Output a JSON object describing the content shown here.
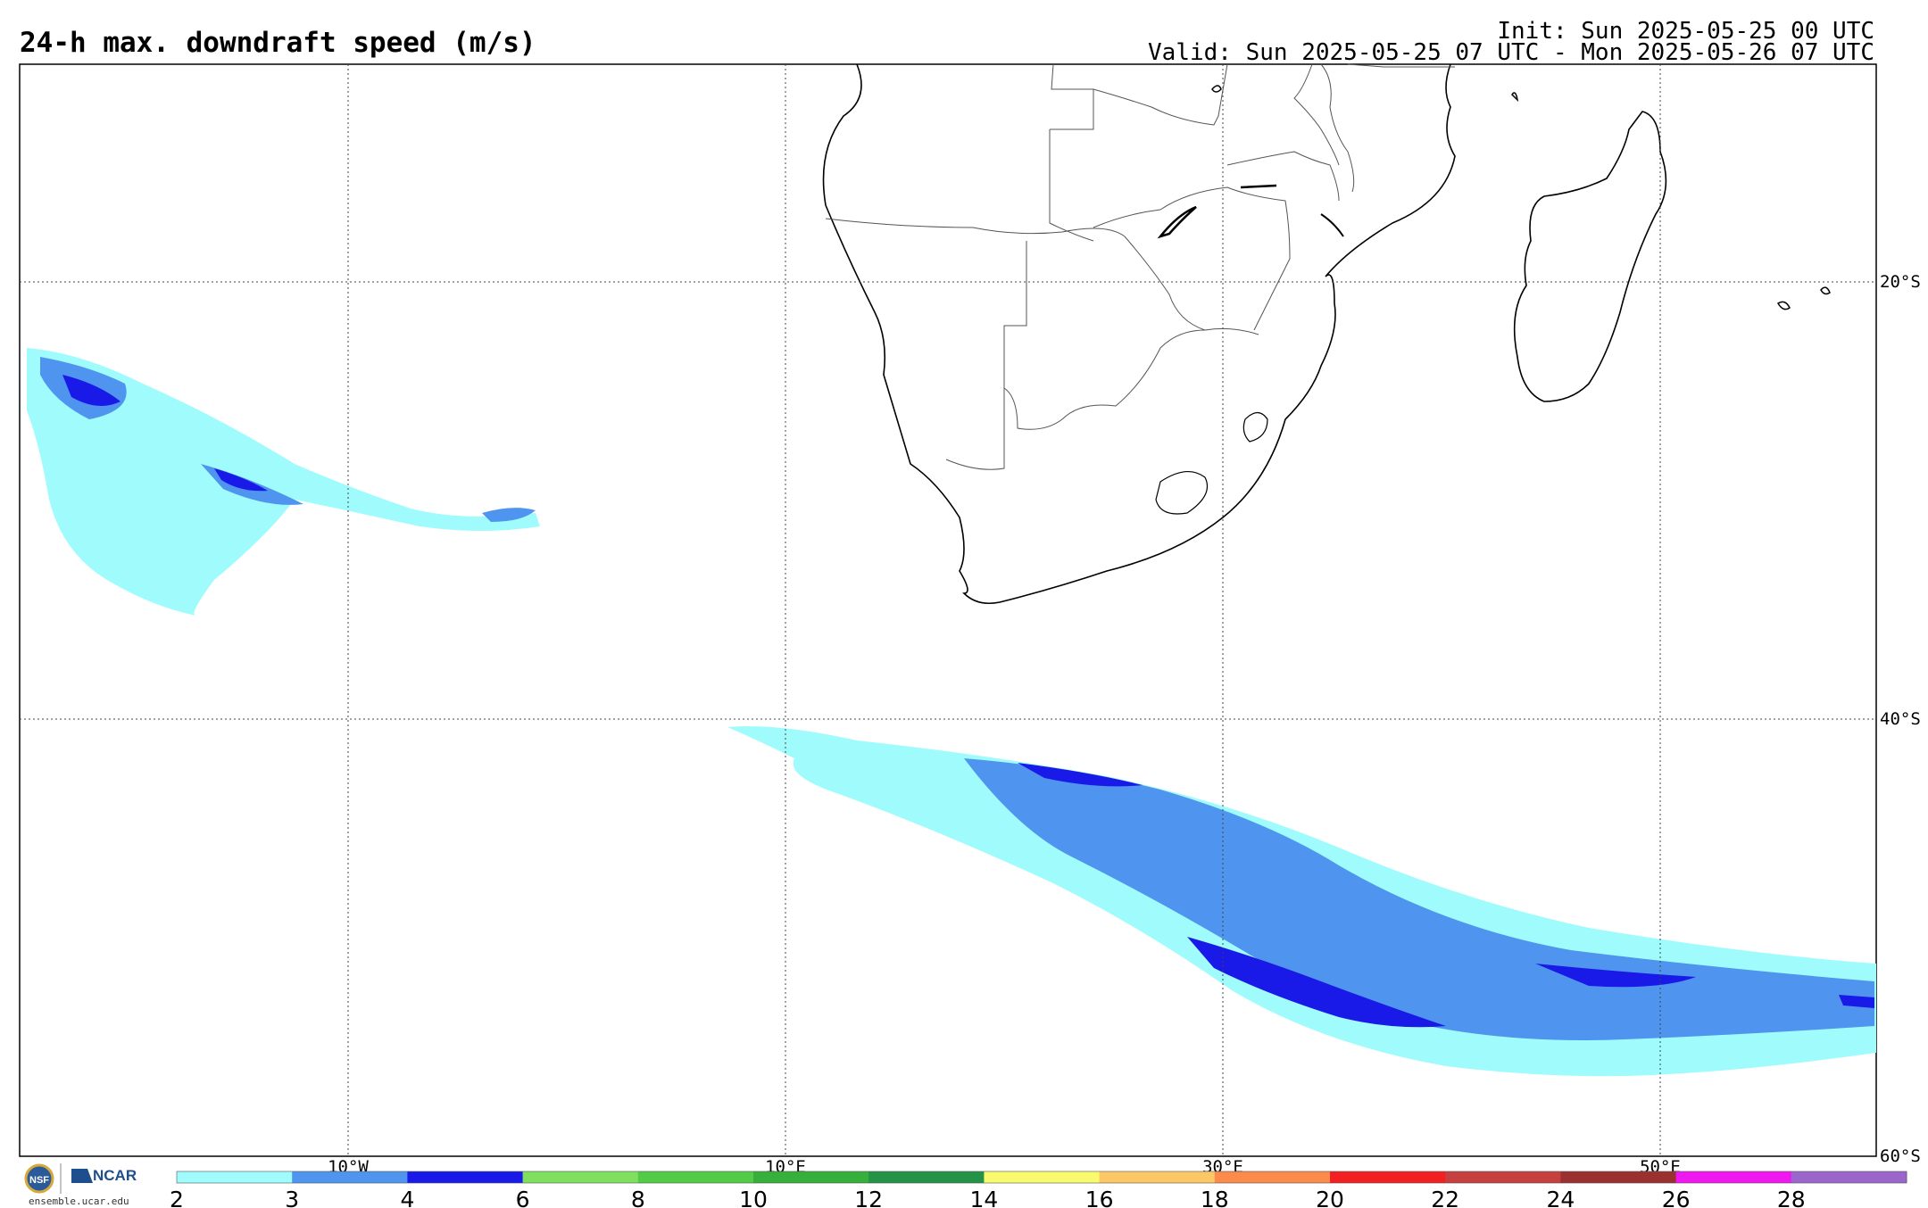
{
  "header": {
    "title": "24-h max. downdraft speed (m/s)",
    "init": "Init: Sun 2025-05-25 00 UTC",
    "valid": "Valid: Sun 2025-05-25 07 UTC - Mon 2025-05-26 07 UTC"
  },
  "map": {
    "lat_labels": [
      "20°S",
      "40°S",
      "60°S"
    ],
    "lon_labels": [
      "10°W",
      "10°E",
      "30°E",
      "50°E"
    ]
  },
  "colorbar": {
    "ticks": [
      "2",
      "3",
      "4",
      "6",
      "8",
      "10",
      "12",
      "14",
      "16",
      "18",
      "20",
      "22",
      "24",
      "26",
      "28"
    ],
    "colors": [
      "#a0fcfc",
      "#4f95ef",
      "#1a1ae8",
      "#7fe060",
      "#52cc46",
      "#36b03a",
      "#249247",
      "#fafa6e",
      "#fcc866",
      "#fc8a4a",
      "#f22020",
      "#c64040",
      "#9a3030",
      "#f018f0",
      "#9a66cc"
    ]
  },
  "footer": {
    "logo_text": "NCAR",
    "credit": "ensemble.ucar.edu"
  }
}
